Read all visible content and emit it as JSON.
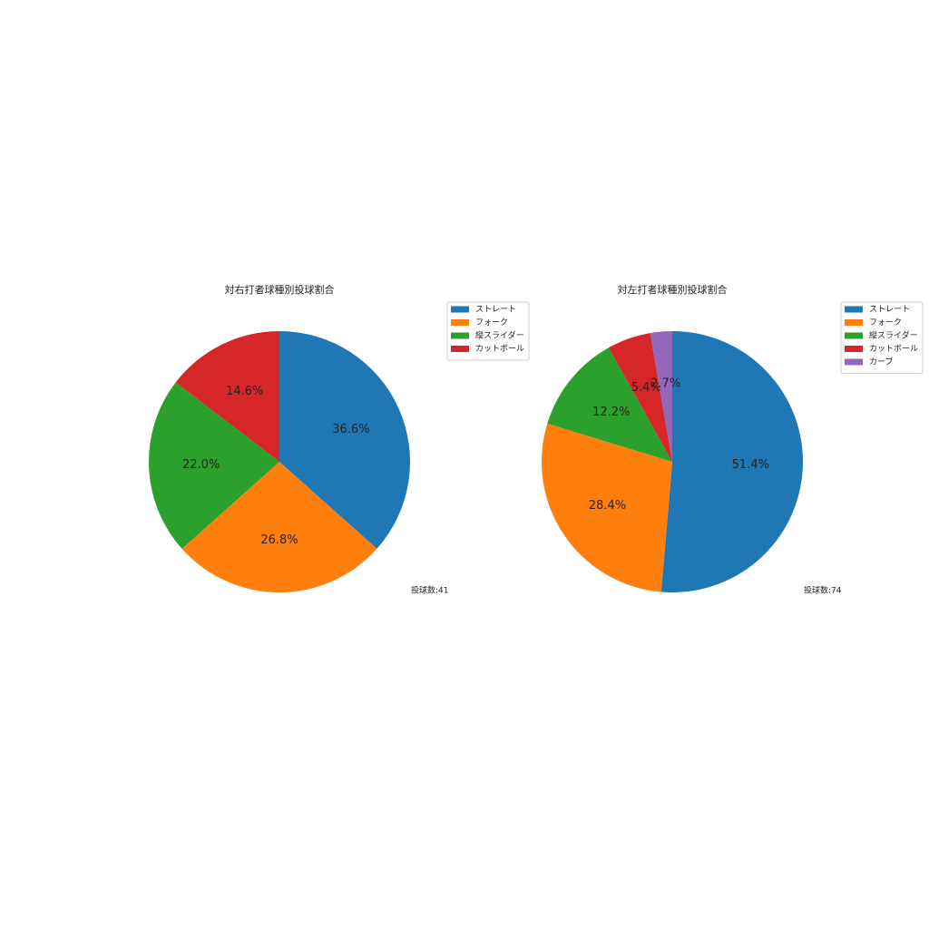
{
  "chart_data": [
    {
      "type": "pie",
      "title": "対右打者球種別投球割合",
      "categories": [
        "ストレート",
        "フォーク",
        "縦スライダー",
        "カットボール"
      ],
      "values": [
        36.6,
        26.8,
        22.0,
        14.6
      ],
      "value_labels": [
        "36.6%",
        "26.8%",
        "22.0%",
        "14.6%"
      ],
      "colors": [
        "#1f77b4",
        "#ff7f0e",
        "#2ca02c",
        "#d62728"
      ],
      "annotation": "投球数:41",
      "legend": "upper right"
    },
    {
      "type": "pie",
      "title": "対左打者球種別投球割合",
      "categories": [
        "ストレート",
        "フォーク",
        "縦スライダー",
        "カットボール",
        "カーブ"
      ],
      "values": [
        51.4,
        28.4,
        12.2,
        5.4,
        2.7
      ],
      "value_labels": [
        "51.4%",
        "28.4%",
        "12.2%",
        "5.4%",
        "2.7%"
      ],
      "colors": [
        "#1f77b4",
        "#ff7f0e",
        "#2ca02c",
        "#d62728",
        "#9467bd"
      ],
      "annotation": "投球数:74",
      "legend": "upper right"
    }
  ]
}
